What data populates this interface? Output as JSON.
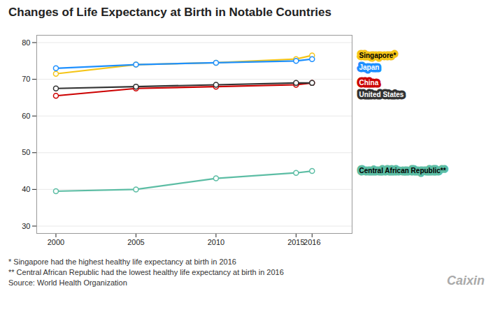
{
  "chart_data": {
    "type": "line",
    "title": "Changes of Life Expectancy at Birth in Notable Countries",
    "x": [
      2000,
      2005,
      2010,
      2015,
      2016
    ],
    "series": [
      {
        "name": "Singapore*",
        "color": "#F5C518",
        "values": [
          71.5,
          74.0,
          74.5,
          75.5,
          76.5
        ]
      },
      {
        "name": "Japan",
        "color": "#1E90FF",
        "values": [
          73.0,
          74.0,
          74.5,
          75.0,
          75.5
        ]
      },
      {
        "name": "China",
        "color": "#CC0000",
        "values": [
          65.5,
          67.5,
          68.0,
          68.5,
          69.0
        ]
      },
      {
        "name": "United States",
        "color": "#333333",
        "values": [
          67.5,
          68.0,
          68.5,
          69.0,
          69.0
        ]
      },
      {
        "name": "Central African Republic**",
        "color": "#5CBDA4",
        "values": [
          39.5,
          40.0,
          43.0,
          44.5,
          45.0
        ]
      }
    ],
    "xlim": [
      1998.8,
      2018.5
    ],
    "xticks": [
      2000,
      2005,
      2010,
      2015,
      2016
    ],
    "ylim": [
      28,
      82
    ],
    "yticks": [
      30,
      40,
      50,
      60,
      70,
      80
    ],
    "grid": true,
    "marker": "circle",
    "line_style": "solid",
    "footnotes": [
      "* Singapore had the highest healthy life expectancy at birth in 2016",
      "** Central African Republic had the lowest healthy life expectancy at birth in 2016",
      "Source: World Health Organization"
    ],
    "logo": "Caixin"
  }
}
